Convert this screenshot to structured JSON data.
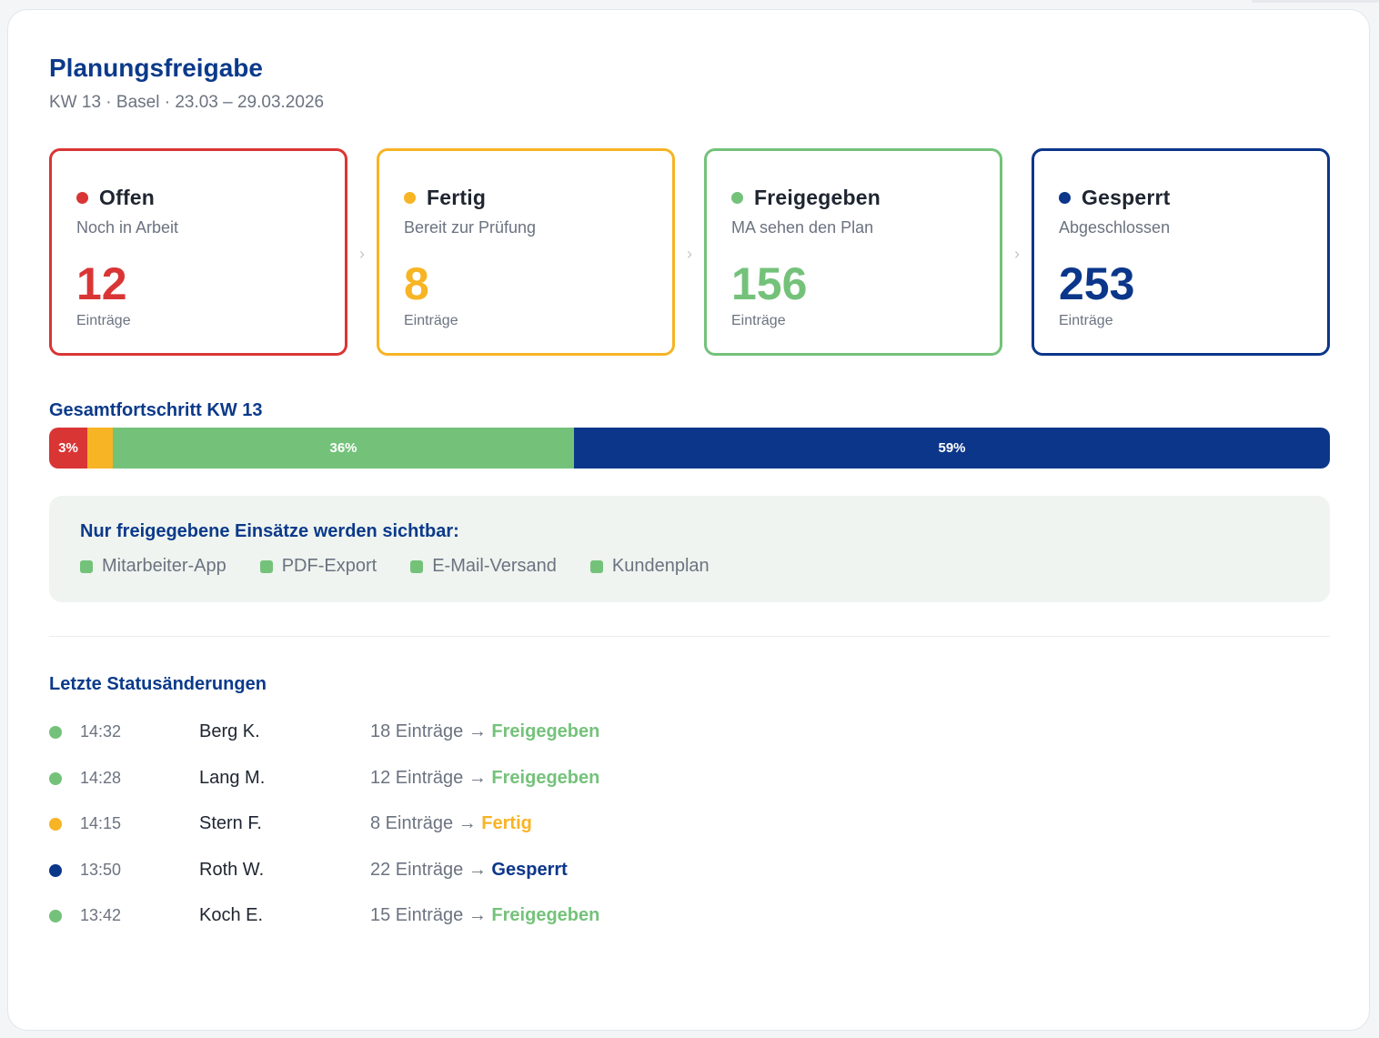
{
  "header": {
    "title": "Planungsfreigabe",
    "subtitle": "KW 13 · Basel · 23.03 – 29.03.2026"
  },
  "colors": {
    "offen": "#d93535",
    "fertig": "#f7b424",
    "freigegeben": "#74c27a",
    "gesperrt": "#0b368a"
  },
  "cards": [
    {
      "name": "Offen",
      "desc": "Noch in Arbeit",
      "count": "12",
      "unit": "Einträge"
    },
    {
      "name": "Fertig",
      "desc": "Bereit zur Prüfung",
      "count": "8",
      "unit": "Einträge"
    },
    {
      "name": "Freigegeben",
      "desc": "MA sehen den Plan",
      "count": "156",
      "unit": "Einträge"
    },
    {
      "name": "Gesperrt",
      "desc": "Abgeschlossen",
      "count": "253",
      "unit": "Einträge"
    }
  ],
  "chevron": "›",
  "progress": {
    "title": "Gesamtfortschritt KW 13",
    "segments": [
      {
        "status": "offen",
        "label": "3%"
      },
      {
        "status": "fertig",
        "label": ""
      },
      {
        "status": "freigegeben",
        "label": "36%"
      },
      {
        "status": "gesperrt",
        "label": "59%"
      }
    ]
  },
  "notice": {
    "title": "Nur freigegebene Einsätze werden sichtbar:",
    "items": [
      "Mitarbeiter-App",
      "PDF-Export",
      "E-Mail-Versand",
      "Kundenplan"
    ]
  },
  "log": {
    "title": "Letzte Statusänderungen",
    "rows": [
      {
        "status": "freigegeben",
        "time": "14:32",
        "who": "Berg K.",
        "count": "18 Einträge →",
        "to": "Freigegeben"
      },
      {
        "status": "freigegeben",
        "time": "14:28",
        "who": "Lang M.",
        "count": "12 Einträge →",
        "to": "Freigegeben"
      },
      {
        "status": "fertig",
        "time": "14:15",
        "who": "Stern F.",
        "count": "8 Einträge →",
        "to": "Fertig"
      },
      {
        "status": "gesperrt",
        "time": "13:50",
        "who": "Roth W.",
        "count": "22 Einträge →",
        "to": "Gesperrt"
      },
      {
        "status": "freigegeben",
        "time": "13:42",
        "who": "Koch E.",
        "count": "15 Einträge →",
        "to": "Freigegeben"
      }
    ]
  }
}
